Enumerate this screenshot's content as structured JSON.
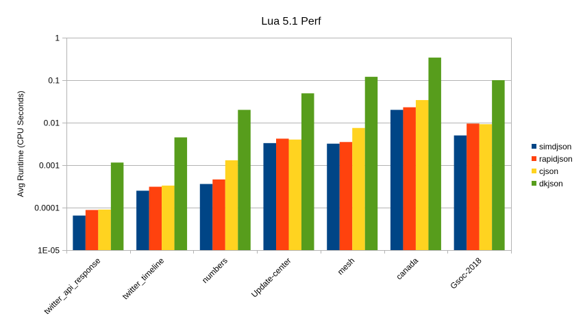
{
  "chart_data": {
    "type": "bar",
    "title": "Lua 5.1 Perf",
    "xlabel": "",
    "ylabel": "Avg Runtime (CPU Seconds)",
    "yscale": "log",
    "ylim": [
      1e-05,
      1
    ],
    "yticks": [
      1e-05,
      0.0001,
      0.001,
      0.01,
      0.1,
      1
    ],
    "ytick_labels": [
      "1E-05",
      "0.0001",
      "0.001",
      "0.01",
      "0.1",
      "1"
    ],
    "grid": true,
    "legend_position": "right",
    "categories": [
      "twitter_api_response",
      "twitter_timeline",
      "numbers",
      "Update-center",
      "mesh",
      "canada",
      "Gsoc-2018"
    ],
    "series": [
      {
        "name": "simdjson",
        "color": "#004586",
        "values": [
          6.5e-05,
          0.00025,
          0.00036,
          0.0033,
          0.0032,
          0.02,
          0.005
        ]
      },
      {
        "name": "rapidjson",
        "color": "#ff420e",
        "values": [
          8.8e-05,
          0.00031,
          0.00046,
          0.0042,
          0.0035,
          0.023,
          0.0095
        ]
      },
      {
        "name": "cjson",
        "color": "#ffd320",
        "values": [
          9e-05,
          0.00033,
          0.0013,
          0.004,
          0.0075,
          0.034,
          0.0092
        ]
      },
      {
        "name": "dkjson",
        "color": "#579d1c",
        "values": [
          0.00115,
          0.0045,
          0.02,
          0.049,
          0.12,
          0.34,
          0.1
        ]
      }
    ]
  }
}
